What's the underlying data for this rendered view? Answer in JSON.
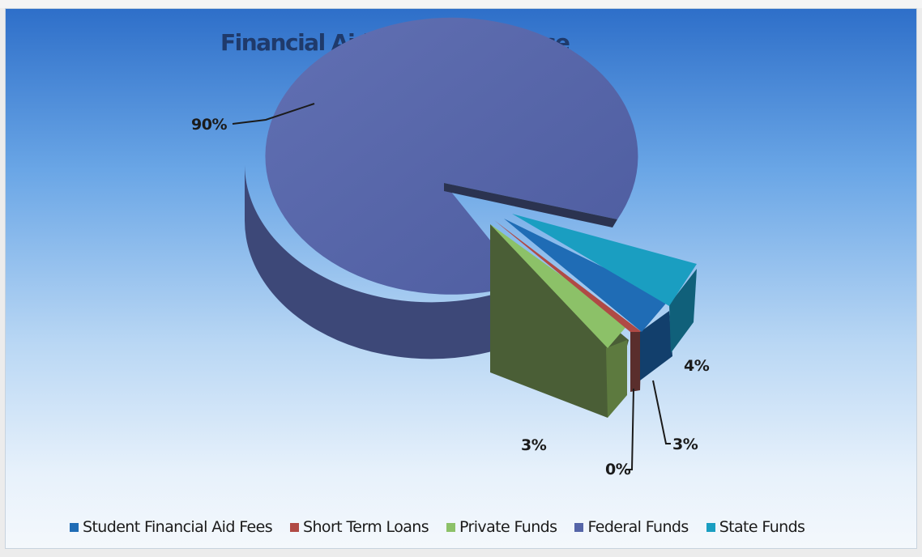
{
  "chart_data": {
    "type": "pie",
    "title": "Financial Aid Funds by Source",
    "categories": [
      "Student Financial Aid Fees",
      "Short Term Loans",
      "Private Funds",
      "Federal Funds",
      "State Funds"
    ],
    "values": [
      3,
      0,
      3,
      90,
      4
    ],
    "labels": [
      "3%",
      "0%",
      "3%",
      "90%",
      "4%"
    ],
    "colors": [
      "#1f6cb5",
      "#b04a45",
      "#8cc168",
      "#5565a8",
      "#1a9ec1"
    ],
    "legend_position": "bottom",
    "exploded": [
      "Student Financial Aid Fees",
      "Short Term Loans",
      "Private Funds",
      "State Funds"
    ]
  }
}
